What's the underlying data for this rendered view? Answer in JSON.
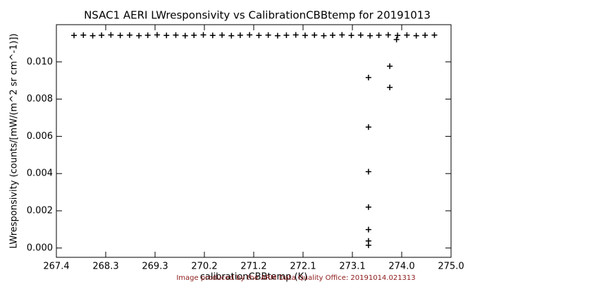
{
  "chart_data": {
    "type": "scatter",
    "title": "NSAC1 AERI LWresponsivity vs CalibrationCBBtemp for 20191013",
    "x_label": "calibrationCBBtemp (K)",
    "y_label": "LWresponsivity (counts/[mW/(m^2 sr cm^-1)])",
    "footer": "Image produced by the ARM Data Quality Office: 20191014.021313",
    "color": "#000000",
    "x": [
      267.74,
      267.92,
      268.1,
      268.27,
      268.45,
      268.63,
      268.81,
      268.99,
      269.16,
      269.34,
      269.52,
      269.7,
      269.88,
      270.05,
      270.23,
      270.41,
      270.59,
      270.77,
      270.94,
      271.12,
      271.3,
      271.48,
      271.66,
      271.83,
      272.01,
      272.19,
      272.37,
      272.55,
      272.72,
      272.9,
      273.08,
      273.26,
      273.44,
      273.61,
      273.79,
      273.97,
      274.15,
      274.33,
      274.5,
      274.68,
      273.41,
      273.41,
      273.41,
      273.41,
      273.41,
      273.41,
      273.41,
      273.82,
      273.82,
      273.95
    ],
    "values": [
      0.01142,
      0.01144,
      0.01141,
      0.01143,
      0.01145,
      0.01142,
      0.01144,
      0.01141,
      0.01143,
      0.01145,
      0.01142,
      0.01144,
      0.01141,
      0.01143,
      0.01145,
      0.01142,
      0.01144,
      0.01141,
      0.01143,
      0.01145,
      0.01142,
      0.01144,
      0.01141,
      0.01143,
      0.01145,
      0.01142,
      0.01144,
      0.01141,
      0.01143,
      0.01145,
      0.01142,
      0.01144,
      0.01141,
      0.01143,
      0.01145,
      0.01142,
      0.01144,
      0.01141,
      0.01143,
      0.01144,
      0.00916,
      0.0065,
      0.0041,
      0.0022,
      0.00099,
      0.00038,
      0.00015,
      0.00977,
      0.00863,
      0.0112
    ],
    "xlim": [
      267.4,
      275.0
    ],
    "xticks": [
      {
        "value": 267.4,
        "label": "267.4"
      },
      {
        "value": 268.35,
        "label": "268.3"
      },
      {
        "value": 269.3,
        "label": "269.3"
      },
      {
        "value": 270.25,
        "label": "270.2"
      },
      {
        "value": 271.2,
        "label": "271.2"
      },
      {
        "value": 272.15,
        "label": "272.1"
      },
      {
        "value": 273.1,
        "label": "273.1"
      },
      {
        "value": 274.05,
        "label": "274.0"
      },
      {
        "value": 275.0,
        "label": "275.0"
      }
    ],
    "ylim": [
      -0.0005,
      0.012
    ],
    "yticks": [
      {
        "value": 0,
        "label": "0.000"
      },
      {
        "value": 0.002,
        "label": "0.002"
      },
      {
        "value": 0.004,
        "label": "0.004"
      },
      {
        "value": 0.006,
        "label": "0.006"
      },
      {
        "value": 0.008,
        "label": "0.008"
      },
      {
        "value": 0.01,
        "label": "0.010"
      }
    ]
  }
}
